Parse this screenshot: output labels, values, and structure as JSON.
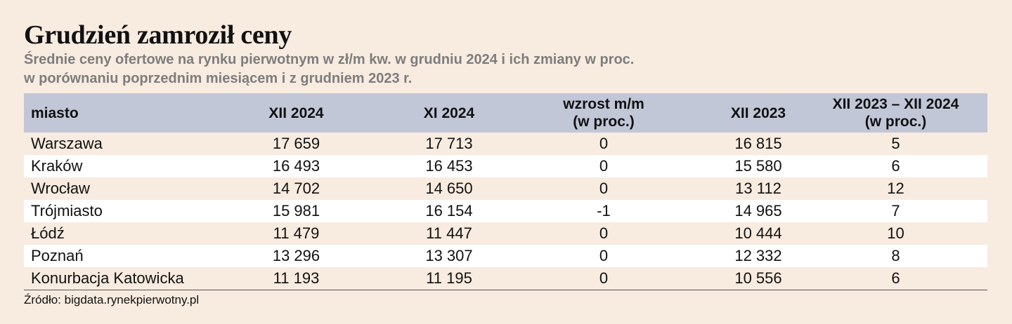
{
  "title": "Grudzień zamroził ceny",
  "subtitle": {
    "line1": "Średnie ceny ofertowe na rynku pierwotnym w zł/m kw. w grudniu 2024 i ich zmiany w proc.",
    "line2": "w porównaniu poprzednim miesiącem i z grudniem 2023 r."
  },
  "table": {
    "headers": [
      {
        "line1": "miasto",
        "line2": ""
      },
      {
        "line1": "XII 2024",
        "line2": ""
      },
      {
        "line1": "XI 2024",
        "line2": ""
      },
      {
        "line1": "wzrost m/m",
        "line2": "(w proc.)"
      },
      {
        "line1": "XII 2023",
        "line2": ""
      },
      {
        "line1": "XII 2023 – XII 2024",
        "line2": "(w proc.)"
      }
    ],
    "rows": [
      [
        "Warszawa",
        "17 659",
        "17 713",
        "0",
        "16 815",
        "5"
      ],
      [
        "Kraków",
        "16 493",
        "16 453",
        "0",
        "15 580",
        "6"
      ],
      [
        "Wrocław",
        "14 702",
        "14 650",
        "0",
        "13 112",
        "12"
      ],
      [
        "Trójmiasto",
        "15 981",
        "16 154",
        "-1",
        "14 965",
        "7"
      ],
      [
        "Łódź",
        "11 479",
        "11 447",
        "0",
        "10 444",
        "10"
      ],
      [
        "Poznań",
        "13 296",
        "13 307",
        "0",
        "12 332",
        "8"
      ],
      [
        "Konurbacja Katowicka",
        "11 193",
        "11 195",
        "0",
        "10 556",
        "6"
      ]
    ]
  },
  "source": "Źródło: bigdata.rynekpierwotny.pl",
  "colors": {
    "background": "#f8ebe0",
    "header_row": "#c2c7d8",
    "alt_row": "#ffffff",
    "subtitle": "#7d7d7d"
  }
}
